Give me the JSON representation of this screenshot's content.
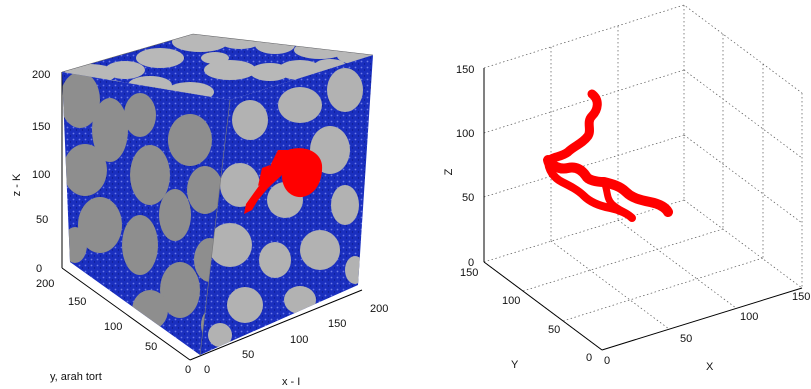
{
  "left_panel": {
    "z_label": "z - K",
    "y_label": "y, arah tort",
    "x_label": "x - I",
    "z_ticks": [
      "0",
      "50",
      "100",
      "150",
      "200"
    ],
    "y_ticks": [
      "50",
      "100",
      "150",
      "200"
    ],
    "x_ticks": [
      "0",
      "50",
      "100",
      "150",
      "200"
    ],
    "origin_tick": "0",
    "colors": {
      "solid": "#b4b4b4",
      "solid_side": "#8c8c8c",
      "pore": "#1428b4",
      "path": "#ff0000"
    }
  },
  "right_panel": {
    "z_label": "Z",
    "y_label": "Y",
    "x_label": "X",
    "z_ticks": [
      "0",
      "50",
      "100",
      "150"
    ],
    "y_ticks": [
      "0",
      "50",
      "100",
      "150"
    ],
    "x_ticks": [
      "0",
      "50",
      "100",
      "150"
    ],
    "colors": {
      "path": "#ff0000"
    }
  }
}
